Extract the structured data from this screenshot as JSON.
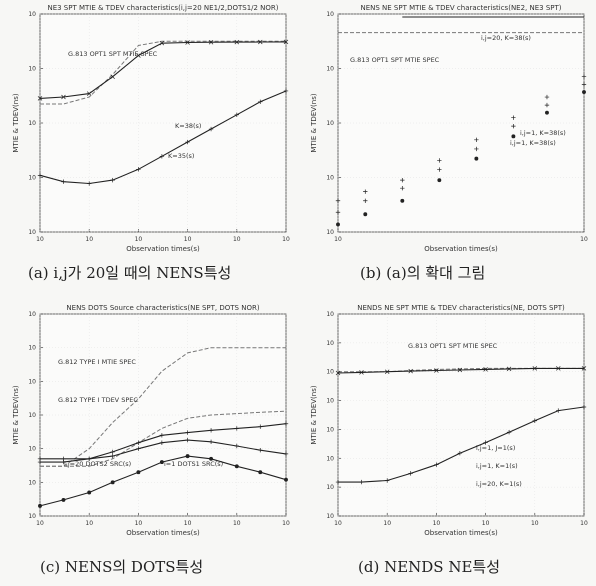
{
  "captions": [
    "(a) i,j가 20일 때의 NENS특성",
    "(b) (a)의 확대 그림",
    "(c) NENS의 DOTS특성",
    "(d) NENDS NE특성"
  ],
  "chart_data": [
    {
      "type": "line",
      "title": "NE3 SPT MTIE & TDEV characteristics(i,j=20 NE1/2,DOTS1/2 NOR)",
      "xlabel": "Observation times(s)",
      "ylabel": "MTIE & TDEV(ns)",
      "xscale": "log",
      "yscale": "log",
      "xlim": [
        0.1,
        10000
      ],
      "ylim": [
        0.001,
        100000
      ],
      "xticks": [
        "10",
        "10",
        "10",
        "10",
        "10",
        "10"
      ],
      "yticks": [
        "10",
        "10",
        "10",
        "10",
        "10"
      ],
      "annotations": [
        "G.813 OPT1 SPT MTIE SPEC",
        "K=38(s)",
        "K=35(s)"
      ],
      "series": [
        {
          "x": [
            0.1,
            0.3,
            1,
            3,
            10,
            30,
            100,
            300,
            1000,
            3000,
            10000
          ],
          "y": [
            50,
            50,
            90,
            600,
            7000,
            10000,
            10000,
            10000,
            10000,
            10000,
            10000
          ],
          "style": "dashed"
        },
        {
          "x": [
            0.1,
            0.3,
            1,
            3,
            10,
            30,
            100,
            300,
            1000,
            3000,
            10000
          ],
          "y": [
            80,
            90,
            120,
            500,
            3000,
            8500,
            9000,
            9200,
            9300,
            9400,
            9500
          ]
        },
        {
          "x": [
            0.1,
            0.3,
            1,
            3,
            10,
            30,
            100,
            300,
            1000,
            3000,
            10000
          ],
          "y": [
            0.12,
            0.07,
            0.06,
            0.08,
            0.2,
            0.6,
            2,
            6,
            20,
            60,
            150
          ]
        }
      ]
    },
    {
      "type": "scatter",
      "title": "NENS NE SPT MTIE & TDEV characteristics(NE2, NE3 SPT)",
      "xlabel": "Observation times(s)",
      "ylabel": "MTIE & TDEV(ns)",
      "xscale": "log",
      "yscale": "log",
      "xlim": [
        3,
        300
      ],
      "ylim": [
        0.5,
        8000
      ],
      "xticks": [
        "10",
        "10"
      ],
      "yticks": [
        "10",
        "10",
        "10",
        "10",
        "10"
      ],
      "annotations": [
        "i,j=20, K=38(s)",
        "G.813 OPT1 SPT MTIE SPEC",
        "i,j=1, K=38(s)",
        "i,j=1, K=38(s)"
      ],
      "series": [
        {
          "x": [
            10,
            300
          ],
          "y": [
            7000,
            7000
          ],
          "style": "line"
        },
        {
          "x": [
            3,
            300
          ],
          "y": [
            3500,
            3500
          ],
          "style": "dashed"
        },
        {
          "x": [
            3,
            5,
            10,
            20,
            40,
            80,
            150,
            300
          ],
          "y": [
            2,
            3,
            5,
            12,
            30,
            80,
            200,
            500
          ]
        },
        {
          "x": [
            3,
            5,
            10,
            20,
            40,
            80,
            150,
            300
          ],
          "y": [
            1.2,
            2,
            3.5,
            8,
            20,
            55,
            140,
            350
          ]
        },
        {
          "x": [
            3,
            5,
            10,
            20,
            40,
            80,
            150,
            300
          ],
          "y": [
            0.7,
            1.1,
            2,
            5,
            13,
            35,
            100,
            250
          ]
        }
      ]
    },
    {
      "type": "line",
      "title": "NENS DOTS Source characteristics(NE SPT, DOTS NOR)",
      "xlabel": "Observation times(s)",
      "ylabel": "MTIE & TDEV(ns)",
      "xscale": "log",
      "yscale": "log",
      "xlim": [
        0.1,
        10000
      ],
      "ylim": [
        0.1,
        100000
      ],
      "xticks": [
        "10",
        "10",
        "10",
        "10",
        "10",
        "10"
      ],
      "yticks": [
        "10",
        "10",
        "10",
        "10",
        "10",
        "10",
        "10"
      ],
      "annotations": [
        "G.812 TYPE I MTIE SPEC",
        "G.812 TYPE I TDEV SPEC",
        "i,j=20 DOTS2 SRC(s)",
        "i=1 DOTS1 SRC(s)"
      ],
      "series": [
        {
          "x": [
            0.1,
            0.3,
            1,
            3,
            10,
            30,
            100,
            300,
            1000,
            3000,
            10000
          ],
          "y": [
            3,
            3,
            10,
            60,
            300,
            2000,
            7000,
            10000,
            10000,
            10000,
            10000
          ],
          "style": "dashed"
        },
        {
          "x": [
            0.1,
            0.3,
            1,
            3,
            10,
            30,
            100,
            300,
            1000,
            3000,
            10000
          ],
          "y": [
            3,
            3,
            3,
            5,
            15,
            40,
            80,
            100,
            110,
            120,
            130
          ],
          "style": "dashed"
        },
        {
          "x": [
            0.1,
            0.3,
            1,
            3,
            10,
            30,
            100,
            300,
            1000,
            3000,
            10000
          ],
          "y": [
            5,
            5,
            5,
            8,
            15,
            25,
            30,
            35,
            40,
            45,
            55
          ]
        },
        {
          "x": [
            0.1,
            0.3,
            1,
            3,
            10,
            30,
            100,
            300,
            1000,
            3000,
            10000
          ],
          "y": [
            4,
            4,
            5,
            6,
            10,
            15,
            18,
            16,
            12,
            9,
            7
          ]
        },
        {
          "x": [
            0.1,
            0.3,
            1,
            3,
            10,
            30,
            100,
            300,
            1000,
            3000,
            10000
          ],
          "y": [
            0.2,
            0.3,
            0.5,
            1,
            2,
            4,
            6,
            5,
            3,
            2,
            1.2
          ]
        }
      ]
    },
    {
      "type": "line",
      "title": "NENDS NE SPT MTIE & TDEV characteristics(NE, DOTS SPT)",
      "xlabel": "Observation times(s)",
      "ylabel": "MTIE & TDEV(ns)",
      "xscale": "log",
      "yscale": "log",
      "xlim": [
        0.1,
        10000
      ],
      "ylim": [
        0.01,
        100000
      ],
      "xticks": [
        "10",
        "10",
        "10",
        "10",
        "10",
        "10"
      ],
      "yticks": [
        "10",
        "10",
        "10",
        "10",
        "10",
        "10",
        "10",
        "10"
      ],
      "annotations": [
        "G.813 OPT1 SPT MTIE SPEC",
        "i,j=1, J=1(s)",
        "i,j=1, K=1(s)",
        "i,j=20, K=1(s)"
      ],
      "series": [
        {
          "x": [
            0.1,
            0.3,
            1,
            3,
            10,
            30,
            100,
            300,
            1000,
            3000,
            10000
          ],
          "y": [
            1000,
            1000,
            1000,
            1100,
            1200,
            1250,
            1300,
            1300,
            1300,
            1300,
            1300
          ],
          "style": "dashed"
        },
        {
          "x": [
            0.1,
            0.3,
            1,
            3,
            10,
            30,
            100,
            300,
            1000,
            3000,
            10000
          ],
          "y": [
            900,
            950,
            1000,
            1050,
            1100,
            1150,
            1200,
            1250,
            1300,
            1300,
            1300
          ]
        },
        {
          "x": [
            0.1,
            0.3,
            1,
            3,
            10,
            30,
            100,
            300,
            1000,
            3000,
            10000
          ],
          "y": [
            0.15,
            0.15,
            0.17,
            0.3,
            0.6,
            1.5,
            3.5,
            8,
            20,
            45,
            60
          ]
        }
      ]
    }
  ]
}
